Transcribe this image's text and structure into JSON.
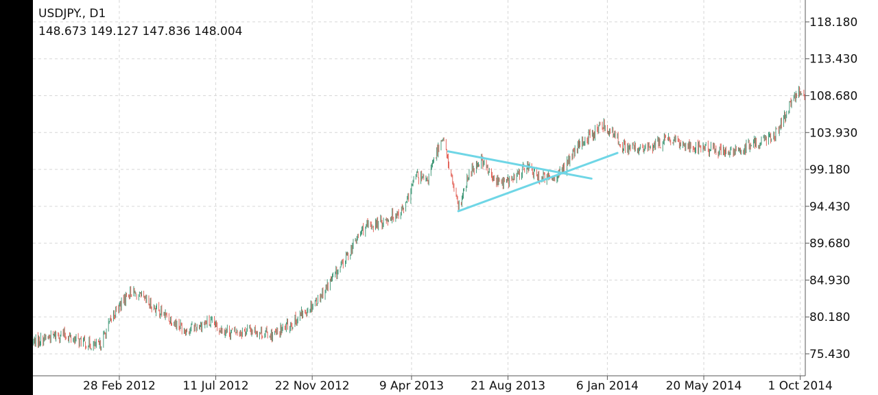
{
  "header": {
    "symbol": "USDJPY.",
    "timeframe": "D1",
    "ohlc": [
      "148.673",
      "149.127",
      "147.836",
      "148.004"
    ]
  },
  "colors": {
    "background": "#ffffff",
    "bull_candle": "#2f8f6b",
    "bear_candle": "#e0554a",
    "grid": "#d6d6d6",
    "trendline": "#6fd6e6",
    "axis": "#555555"
  },
  "chart_data": {
    "type": "candlestick",
    "title": "",
    "xlabel": "",
    "ylabel": "",
    "x_range": [
      "2011-10-31",
      "2014-10-08"
    ],
    "ylim": [
      72.6,
      121.0
    ],
    "grid": true,
    "y_ticks": [
      "118.180",
      "113.430",
      "108.680",
      "103.930",
      "99.180",
      "94.430",
      "89.680",
      "84.930",
      "80.180",
      "75.430"
    ],
    "x_ticks": [
      {
        "label": "28 Feb 2012",
        "date": "2012-02-28"
      },
      {
        "label": "11 Jul 2012",
        "date": "2012-07-11"
      },
      {
        "label": "22 Nov 2012",
        "date": "2012-11-22"
      },
      {
        "label": "9 Apr 2013",
        "date": "2013-04-09"
      },
      {
        "label": "21 Aug 2013",
        "date": "2013-08-21"
      },
      {
        "label": "6 Jan 2014",
        "date": "2014-01-06"
      },
      {
        "label": "20 May 2014",
        "date": "2014-05-20"
      },
      {
        "label": "1 Oct 2014",
        "date": "2014-10-01"
      }
    ],
    "price_path": [
      [
        "2011-11-01",
        77.0
      ],
      [
        "2011-11-20",
        77.5
      ],
      [
        "2011-12-10",
        78.0
      ],
      [
        "2012-01-05",
        77.0
      ],
      [
        "2012-01-31",
        76.3
      ],
      [
        "2012-02-20",
        80.5
      ],
      [
        "2012-03-14",
        83.5
      ],
      [
        "2012-03-31",
        82.5
      ],
      [
        "2012-04-30",
        80.5
      ],
      [
        "2012-05-31",
        78.5
      ],
      [
        "2012-06-30",
        79.5
      ],
      [
        "2012-07-31",
        78.2
      ],
      [
        "2012-08-31",
        78.5
      ],
      [
        "2012-09-30",
        77.8
      ],
      [
        "2012-10-31",
        79.8
      ],
      [
        "2012-11-30",
        82.5
      ],
      [
        "2012-12-31",
        86.5
      ],
      [
        "2013-01-31",
        91.5
      ],
      [
        "2013-02-28",
        92.5
      ],
      [
        "2013-03-31",
        94.2
      ],
      [
        "2013-04-15",
        98.5
      ],
      [
        "2013-04-30",
        97.5
      ],
      [
        "2013-05-22",
        103.5
      ],
      [
        "2013-06-13",
        94.0
      ],
      [
        "2013-06-30",
        99.0
      ],
      [
        "2013-07-15",
        100.5
      ],
      [
        "2013-07-31",
        97.8
      ],
      [
        "2013-08-15",
        97.5
      ],
      [
        "2013-08-31",
        98.0
      ],
      [
        "2013-09-15",
        99.8
      ],
      [
        "2013-09-30",
        98.3
      ],
      [
        "2013-10-15",
        98.0
      ],
      [
        "2013-10-31",
        98.5
      ],
      [
        "2013-11-15",
        100.5
      ],
      [
        "2013-11-30",
        102.5
      ],
      [
        "2013-12-31",
        105.0
      ],
      [
        "2014-01-31",
        102.0
      ],
      [
        "2014-02-28",
        101.8
      ],
      [
        "2014-03-31",
        103.0
      ],
      [
        "2014-04-30",
        102.2
      ],
      [
        "2014-05-31",
        101.8
      ],
      [
        "2014-06-30",
        101.3
      ],
      [
        "2014-07-31",
        102.5
      ],
      [
        "2014-08-31",
        104.0
      ],
      [
        "2014-09-15",
        107.0
      ],
      [
        "2014-09-30",
        109.5
      ],
      [
        "2014-10-07",
        108.0
      ]
    ],
    "trendlines": [
      {
        "from": [
          "2013-06-13",
          93.8
        ],
        "to": [
          "2014-01-20",
          101.3
        ]
      },
      {
        "from": [
          "2013-05-30",
          101.5
        ],
        "to": [
          "2013-12-15",
          98.0
        ]
      }
    ]
  }
}
